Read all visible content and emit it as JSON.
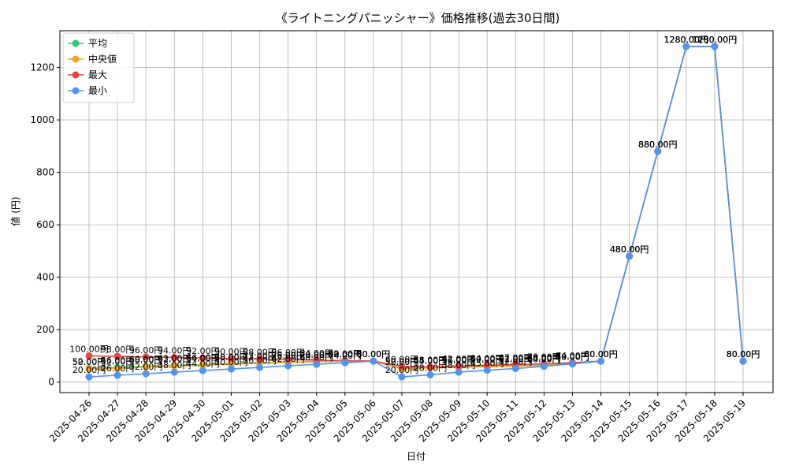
{
  "chart_data": {
    "type": "line",
    "title": "《ライトニングパニッシャー》価格推移(過去30日間)",
    "xlabel": "日付",
    "ylabel": "値 (円)",
    "ylim": [
      -40,
      1340
    ],
    "yticks": [
      0,
      200,
      400,
      600,
      800,
      1000,
      1200
    ],
    "grid": true,
    "legend_position": "top-left",
    "value_suffix": "円",
    "categories": [
      "2025-04-26",
      "2025-04-27",
      "2025-04-28",
      "2025-04-29",
      "2025-04-30",
      "2025-05-01",
      "2025-05-02",
      "2025-05-03",
      "2025-05-04",
      "2025-05-05",
      "2025-05-06",
      "2025-05-07",
      "2025-05-08",
      "2025-05-09",
      "2025-05-10",
      "2025-05-11",
      "2025-05-12",
      "2025-05-13",
      "2025-05-14",
      "2025-05-15",
      "2025-05-16",
      "2025-05-17",
      "2025-05-18",
      "2025-05-19"
    ],
    "series": [
      {
        "name": "平均",
        "color": "#2ecc71",
        "values": [
          52,
          56,
          60,
          63,
          66,
          70,
          73,
          76,
          78,
          80,
          80,
          52,
          55,
          57,
          60,
          62,
          65,
          70,
          80,
          480,
          880,
          1280,
          1280,
          80
        ]
      },
      {
        "name": "中央値",
        "color": "#f5a623",
        "values": [
          50,
          52,
          58,
          62,
          64,
          68,
          72,
          75,
          78,
          80,
          80,
          50,
          54,
          56,
          59,
          61,
          64,
          69,
          80,
          480,
          880,
          1280,
          1280,
          80
        ]
      },
      {
        "name": "最大",
        "color": "#e84545",
        "values": [
          100,
          98,
          96,
          94,
          92,
          90,
          88,
          86,
          84,
          82,
          80,
          60,
          58,
          62,
          64,
          67,
          70,
          74,
          80,
          480,
          880,
          1280,
          1280,
          80
        ]
      },
      {
        "name": "最小",
        "color": "#4e94f0",
        "values": [
          20,
          26,
          32,
          38,
          44,
          50,
          56,
          62,
          68,
          74,
          80,
          20,
          28,
          38,
          45,
          52,
          60,
          70,
          80,
          480,
          880,
          1280,
          1280,
          80
        ]
      }
    ]
  }
}
